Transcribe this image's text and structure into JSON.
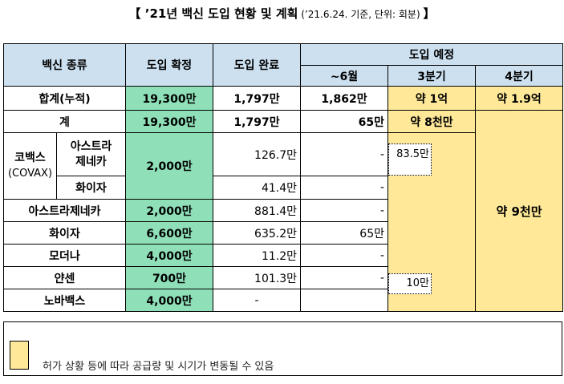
{
  "title": {
    "main": "【 ’21년 백신 도입 현황 및 계획",
    "sub": " (’21.6.24. 기준, 단위: 회분) ",
    "end": "】"
  },
  "headers": {
    "vaccine": "백신 종류",
    "confirmed": "도입 확정",
    "completed": "도입 완료",
    "planned": "도입 예정",
    "june": "~6월",
    "q3": "3분기",
    "q4": "4분기"
  },
  "total_row": {
    "label": "합계(누적)",
    "confirmed": "19,300만",
    "completed": "1,797만",
    "june": "1,862만",
    "q3": "약 1억",
    "q4": "약 1.9억"
  },
  "sum_row": {
    "label": "계",
    "confirmed": "19,300만",
    "completed": "1,797만",
    "june": "65만",
    "q3": "약 8천만"
  },
  "covax": {
    "label_ko": "코백스",
    "label_en": "(COVAX)",
    "confirmed": "2,000만",
    "astra": {
      "label_line1": "아스트라",
      "label_line2": "제네카",
      "completed": "126.7만",
      "june": "-",
      "q3": "83.5만"
    },
    "pfizer": {
      "label": "화이자",
      "completed": "41.4만",
      "june": "-"
    }
  },
  "rows": [
    {
      "label": "아스트라제네카",
      "confirmed": "2,000만",
      "completed": "881.4만",
      "june": "-"
    },
    {
      "label": "화이자",
      "confirmed": "6,600만",
      "completed": "635.2만",
      "june": "65만"
    },
    {
      "label": "모더나",
      "confirmed": "4,000만",
      "completed": "11.2만",
      "june": "-"
    },
    {
      "label": "얀센",
      "confirmed": "700만",
      "completed": "101.3만",
      "june": "-",
      "q3": "10만"
    },
    {
      "label": "노바백스",
      "confirmed": "4,000만",
      "completed": "-"
    }
  ],
  "q4_merged": "약 9천만",
  "legend": {
    "text": "허가 상황 등에 따라 공급량 및 시기가 변동될 수 있음",
    "color": "#ffe999"
  }
}
